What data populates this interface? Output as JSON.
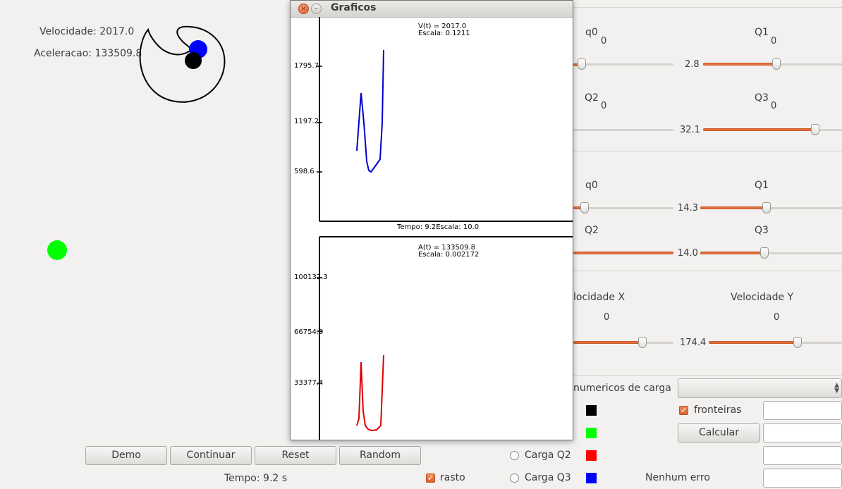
{
  "readouts": {
    "velocidade": "Velocidade: 2017.0",
    "aceleracao": "Aceleracao: 133509.8",
    "tempo": "Tempo: 9.2 s"
  },
  "buttons": {
    "demo": "Demo",
    "continuar": "Continuar",
    "reset": "Reset",
    "random": "Random",
    "calcular": "Calcular"
  },
  "options": {
    "rasto": {
      "label": "rasto",
      "checked": true
    },
    "fronteiras": {
      "label": "fronteiras",
      "checked": true
    },
    "carga_q2": {
      "label": "Carga Q2",
      "selected": false
    },
    "carga_q3": {
      "label": "Carga Q3",
      "selected": false
    }
  },
  "status": "Nenhum erro",
  "numeric_label": "numericos de carga",
  "colors": {
    "q0": "#000000",
    "q1": "#00ff00",
    "q2": "#ff0000",
    "q3": "#0000ff",
    "accent": "#e76f3c",
    "velocity_plot": "#0000cc",
    "accel_plot": "#dd0000"
  },
  "sliders": {
    "g1": {
      "q0": {
        "label": "q0",
        "value": "0"
      },
      "Q1": {
        "label": "Q1",
        "value": "0",
        "value_left": "2.8"
      },
      "Q2": {
        "label": "Q2",
        "value": "0"
      },
      "Q3": {
        "label": "Q3",
        "value": "0",
        "value_left": "32.1"
      }
    },
    "g2": {
      "q0": {
        "label": "q0"
      },
      "Q1": {
        "label": "Q1",
        "value_left": "14.3"
      },
      "Q2": {
        "label": "Q2"
      },
      "Q3": {
        "label": "Q3",
        "value_left": "14.0"
      }
    },
    "g3": {
      "vx": {
        "label": "locidade X",
        "value": "0"
      },
      "vy": {
        "label": "Velocidade Y",
        "value": "0",
        "value_left": "174.4"
      }
    }
  },
  "graph_window": {
    "title": "Graficos",
    "top": {
      "header": "V(t) = 2017.0",
      "scale": "Escala: 0.1211",
      "ticks": [
        "1795.7",
        "1197.2",
        "598.6"
      ],
      "footer": "Tempo: 9.2Escala: 10.0"
    },
    "bottom": {
      "header": "A(t) = 133509.8",
      "scale": "Escala: 0.002172",
      "ticks": [
        "100132.3",
        "66754.9",
        "33377.4"
      ]
    }
  }
}
